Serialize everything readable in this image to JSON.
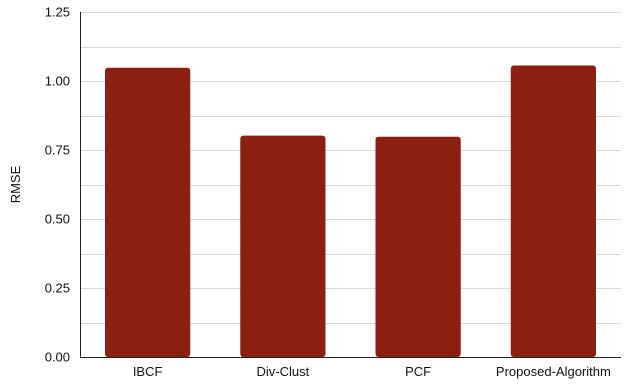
{
  "chart_data": {
    "type": "bar",
    "categories": [
      "IBCF",
      "Div-Clust",
      "PCF",
      "Proposed-Algorithm"
    ],
    "values": [
      1.048,
      0.802,
      0.798,
      1.056
    ],
    "title": "",
    "xlabel": "",
    "ylabel": "RMSE",
    "ylim": [
      0,
      1.25
    ],
    "yticks": [
      0,
      0.25,
      0.5,
      0.75,
      1.0,
      1.25
    ],
    "ytick_labels": [
      "0.00",
      "0.25",
      "0.50",
      "0.75",
      "1.00",
      "1.25"
    ],
    "minor_grid_step": 0.125,
    "grid": true,
    "legend": "none",
    "bar_color": "#8B2010",
    "grid_color": "#d9d9d9"
  }
}
